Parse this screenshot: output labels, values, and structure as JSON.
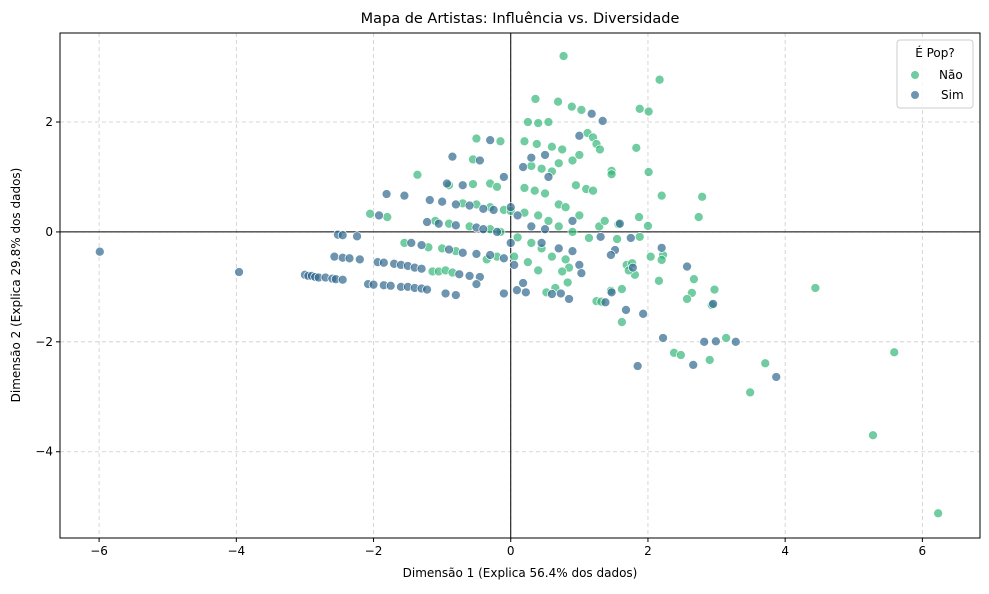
{
  "chart_data": {
    "type": "scatter",
    "title": "Mapa de Artistas: Influência vs. Diversidade",
    "xlabel": "Dimensão 1 (Explica 56.4% dos dados)",
    "ylabel": "Dimensão 2 (Explica 29.8% dos dados)",
    "xlim": [
      -6.57,
      6.84
    ],
    "ylim": [
      -5.57,
      3.62
    ],
    "xticks": [
      -6,
      -4,
      -2,
      0,
      2,
      4,
      6
    ],
    "yticks": [
      -4,
      -2,
      0,
      2
    ],
    "xtick_labels": [
      "−6",
      "−4",
      "−2",
      "0",
      "2",
      "4",
      "6"
    ],
    "ytick_labels": [
      "−4",
      "−2",
      "0",
      "2"
    ],
    "grid": true,
    "reference_lines": {
      "x": 0,
      "y": 0
    },
    "legend": {
      "title": "É Pop?",
      "placement": "top-right"
    },
    "series": [
      {
        "name": "Não",
        "color": "#35b779",
        "points": [
          [
            -2.05,
            0.33
          ],
          [
            -1.8,
            0.27
          ],
          [
            -1.36,
            1.04
          ],
          [
            -1.55,
            -0.2
          ],
          [
            -1.2,
            -0.28
          ],
          [
            -1.0,
            -0.3
          ],
          [
            -0.8,
            -0.35
          ],
          [
            -1.14,
            -0.72
          ],
          [
            -1.05,
            -0.72
          ],
          [
            -0.95,
            -0.7
          ],
          [
            -0.85,
            -0.74
          ],
          [
            -0.7,
            0.52
          ],
          [
            -0.5,
            0.5
          ],
          [
            -0.3,
            0.45
          ],
          [
            -0.1,
            0.4
          ],
          [
            0.0,
            0.38
          ],
          [
            -1.1,
            0.2
          ],
          [
            -0.9,
            0.15
          ],
          [
            -0.6,
            0.1
          ],
          [
            -0.3,
            0.05
          ],
          [
            -0.15,
            0.0
          ],
          [
            -0.9,
            0.85
          ],
          [
            -0.55,
            0.87
          ],
          [
            -0.3,
            0.88
          ],
          [
            -0.2,
            0.82
          ],
          [
            -0.55,
            1.32
          ],
          [
            -0.5,
            1.7
          ],
          [
            -0.15,
            1.65
          ],
          [
            0.2,
            1.65
          ],
          [
            0.38,
            1.6
          ],
          [
            0.6,
            1.55
          ],
          [
            0.75,
            1.5
          ],
          [
            0.25,
            2.0
          ],
          [
            0.4,
            1.98
          ],
          [
            0.55,
            2.0
          ],
          [
            0.36,
            2.42
          ],
          [
            0.69,
            2.37
          ],
          [
            0.89,
            2.28
          ],
          [
            1.03,
            2.22
          ],
          [
            0.77,
            3.2
          ],
          [
            1.88,
            2.24
          ],
          [
            2.01,
            2.19
          ],
          [
            2.17,
            2.77
          ],
          [
            1.83,
            1.53
          ],
          [
            2.01,
            1.09
          ],
          [
            2.2,
            0.66
          ],
          [
            2.79,
            0.64
          ],
          [
            2.74,
            0.27
          ],
          [
            1.87,
            0.27
          ],
          [
            2.0,
            0.11
          ],
          [
            1.12,
            1.8
          ],
          [
            1.2,
            1.72
          ],
          [
            1.25,
            1.6
          ],
          [
            1.3,
            1.5
          ],
          [
            1.47,
            1.11
          ],
          [
            1.47,
            1.05
          ],
          [
            0.3,
            1.2
          ],
          [
            0.45,
            1.15
          ],
          [
            0.6,
            1.1
          ],
          [
            0.7,
            1.25
          ],
          [
            0.9,
            1.3
          ],
          [
            1.0,
            1.4
          ],
          [
            0.2,
            0.8
          ],
          [
            0.35,
            0.75
          ],
          [
            0.5,
            0.7
          ],
          [
            0.7,
            0.5
          ],
          [
            0.8,
            0.45
          ],
          [
            0.95,
            0.85
          ],
          [
            1.1,
            0.78
          ],
          [
            1.2,
            0.75
          ],
          [
            1.0,
            0.3
          ],
          [
            1.29,
            0.1
          ],
          [
            1.37,
            0.2
          ],
          [
            1.57,
            0.14
          ],
          [
            1.55,
            -0.13
          ],
          [
            1.14,
            -0.11
          ],
          [
            1.88,
            -0.09
          ],
          [
            0.2,
            0.35
          ],
          [
            0.4,
            0.3
          ],
          [
            0.55,
            0.2
          ],
          [
            0.7,
            0.1
          ],
          [
            0.9,
            0.0
          ],
          [
            0.1,
            -0.1
          ],
          [
            0.3,
            -0.2
          ],
          [
            0.45,
            -0.3
          ],
          [
            0.6,
            -0.45
          ],
          [
            0.8,
            -0.5
          ],
          [
            0.05,
            -0.45
          ],
          [
            0.25,
            -0.55
          ],
          [
            0.4,
            -0.7
          ],
          [
            0.52,
            -1.1
          ],
          [
            0.65,
            -1.02
          ],
          [
            0.83,
            -0.92
          ],
          [
            0.85,
            -0.65
          ],
          [
            0.75,
            -0.72
          ],
          [
            -0.35,
            -0.5
          ],
          [
            -0.2,
            -0.45
          ],
          [
            2.04,
            -0.45
          ],
          [
            2.22,
            -0.42
          ],
          [
            2.2,
            -0.51
          ],
          [
            2.16,
            -0.89
          ],
          [
            2.67,
            -0.86
          ],
          [
            2.97,
            -1.05
          ],
          [
            2.64,
            -1.11
          ],
          [
            2.57,
            -1.22
          ],
          [
            2.93,
            -1.33
          ],
          [
            1.62,
            -1.04
          ],
          [
            1.46,
            -1.07
          ],
          [
            1.62,
            -1.64
          ],
          [
            1.25,
            -1.26
          ],
          [
            1.32,
            -1.27
          ],
          [
            1.69,
            -0.6
          ],
          [
            1.77,
            -0.57
          ],
          [
            1.81,
            -0.78
          ],
          [
            1.72,
            -0.7
          ],
          [
            2.38,
            -2.2
          ],
          [
            2.48,
            -2.24
          ],
          [
            3.14,
            -1.93
          ],
          [
            2.9,
            -2.33
          ],
          [
            3.71,
            -2.39
          ],
          [
            3.49,
            -2.92
          ],
          [
            4.44,
            -1.02
          ],
          [
            5.59,
            -2.19
          ],
          [
            5.28,
            -3.7
          ],
          [
            6.23,
            -5.12
          ]
        ]
      },
      {
        "name": "Sim",
        "color": "#31688e",
        "points": [
          [
            -5.99,
            -0.36
          ],
          [
            -3.96,
            -0.73
          ],
          [
            -3.0,
            -0.78
          ],
          [
            -2.95,
            -0.8
          ],
          [
            -2.9,
            -0.8
          ],
          [
            -2.85,
            -0.82
          ],
          [
            -2.8,
            -0.83
          ],
          [
            -2.7,
            -0.83
          ],
          [
            -2.6,
            -0.85
          ],
          [
            -2.55,
            -0.86
          ],
          [
            -2.45,
            -0.87
          ],
          [
            -2.57,
            -0.45
          ],
          [
            -2.45,
            -0.47
          ],
          [
            -2.35,
            -0.48
          ],
          [
            -2.2,
            -0.5
          ],
          [
            -2.52,
            -0.05
          ],
          [
            -2.45,
            -0.06
          ],
          [
            -2.24,
            -0.08
          ],
          [
            -1.92,
            0.3
          ],
          [
            -1.81,
            0.69
          ],
          [
            -1.55,
            0.66
          ],
          [
            -2.08,
            -0.95
          ],
          [
            -2.0,
            -0.96
          ],
          [
            -1.85,
            -0.97
          ],
          [
            -1.75,
            -0.98
          ],
          [
            -1.6,
            -1.0
          ],
          [
            -1.5,
            -1.0
          ],
          [
            -1.4,
            -1.02
          ],
          [
            -1.3,
            -1.03
          ],
          [
            -1.22,
            -1.05
          ],
          [
            -1.94,
            -0.55
          ],
          [
            -1.85,
            -0.56
          ],
          [
            -1.7,
            -0.58
          ],
          [
            -1.6,
            -0.6
          ],
          [
            -1.5,
            -0.62
          ],
          [
            -1.4,
            -0.65
          ],
          [
            -1.3,
            -0.67
          ],
          [
            -0.75,
            -0.77
          ],
          [
            -0.6,
            -0.8
          ],
          [
            -0.45,
            -0.82
          ],
          [
            -1.45,
            -0.2
          ],
          [
            -1.3,
            -0.24
          ],
          [
            -0.9,
            -0.32
          ],
          [
            -0.7,
            -0.38
          ],
          [
            -0.5,
            -0.4
          ],
          [
            -0.3,
            -0.42
          ],
          [
            -0.1,
            -0.48
          ],
          [
            -1.22,
            0.18
          ],
          [
            -1.05,
            0.15
          ],
          [
            -0.8,
            0.12
          ],
          [
            -0.5,
            0.08
          ],
          [
            -0.4,
            0.05
          ],
          [
            -0.2,
            0.0
          ],
          [
            -1.18,
            0.58
          ],
          [
            -1.0,
            0.55
          ],
          [
            -0.8,
            0.5
          ],
          [
            -0.6,
            0.48
          ],
          [
            -0.4,
            0.42
          ],
          [
            -0.25,
            0.4
          ],
          [
            -0.93,
            0.88
          ],
          [
            -0.7,
            0.85
          ],
          [
            -0.85,
            1.37
          ],
          [
            -0.45,
            1.3
          ],
          [
            -0.3,
            1.67
          ],
          [
            -0.1,
            1.0
          ],
          [
            0.18,
            1.18
          ],
          [
            0.3,
            1.35
          ],
          [
            0.5,
            1.4
          ],
          [
            0.55,
            1.0
          ],
          [
            1.18,
            2.15
          ],
          [
            1.34,
            2.02
          ],
          [
            0.0,
            0.45
          ],
          [
            0.1,
            0.3
          ],
          [
            0.3,
            0.1
          ],
          [
            0.5,
            0.05
          ],
          [
            0.45,
            -0.2
          ],
          [
            0.7,
            -0.3
          ],
          [
            0.9,
            -0.35
          ],
          [
            0.0,
            -0.2
          ],
          [
            0.05,
            -0.6
          ],
          [
            0.22,
            -1.1
          ],
          [
            0.09,
            -1.06
          ],
          [
            -0.1,
            -1.12
          ],
          [
            0.18,
            -0.93
          ],
          [
            0.6,
            -1.13
          ],
          [
            0.73,
            -1.12
          ],
          [
            0.85,
            -1.22
          ],
          [
            1.0,
            -0.6
          ],
          [
            1.03,
            -0.75
          ],
          [
            1.52,
            -0.33
          ],
          [
            1.46,
            -0.42
          ],
          [
            1.75,
            -0.11
          ],
          [
            1.31,
            -0.09
          ],
          [
            1.59,
            0.15
          ],
          [
            1.0,
            1.75
          ],
          [
            0.9,
            0.2
          ],
          [
            2.2,
            -0.29
          ],
          [
            2.57,
            -0.63
          ],
          [
            2.95,
            -1.31
          ],
          [
            1.93,
            -1.49
          ],
          [
            1.68,
            -1.42
          ],
          [
            1.47,
            -1.1
          ],
          [
            1.38,
            -1.28
          ],
          [
            1.78,
            -0.65
          ],
          [
            2.22,
            -1.93
          ],
          [
            2.66,
            -2.42
          ],
          [
            1.85,
            -2.44
          ],
          [
            2.82,
            -2.0
          ],
          [
            2.99,
            -1.99
          ],
          [
            3.28,
            -2.0
          ],
          [
            3.87,
            -2.64
          ],
          [
            -0.95,
            -1.12
          ],
          [
            -0.8,
            -1.15
          ],
          [
            -0.5,
            -0.95
          ]
        ]
      }
    ]
  }
}
